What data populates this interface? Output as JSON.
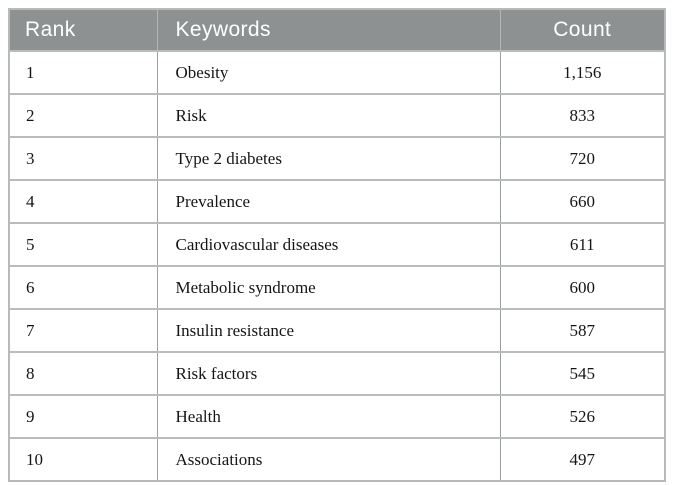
{
  "table": {
    "name": "top-keywords-table",
    "columns": [
      {
        "key": "rank",
        "label": "Rank"
      },
      {
        "key": "keyword",
        "label": "Keywords"
      },
      {
        "key": "count",
        "label": "Count"
      }
    ],
    "rows": [
      {
        "rank": "1",
        "keyword": "Obesity",
        "count": "1,156"
      },
      {
        "rank": "2",
        "keyword": "Risk",
        "count": "833"
      },
      {
        "rank": "3",
        "keyword": "Type 2 diabetes",
        "count": "720"
      },
      {
        "rank": "4",
        "keyword": "Prevalence",
        "count": "660"
      },
      {
        "rank": "5",
        "keyword": "Cardiovascular diseases",
        "count": "611"
      },
      {
        "rank": "6",
        "keyword": "Metabolic syndrome",
        "count": "600"
      },
      {
        "rank": "7",
        "keyword": "Insulin resistance",
        "count": "587"
      },
      {
        "rank": "8",
        "keyword": "Risk factors",
        "count": "545"
      },
      {
        "rank": "9",
        "keyword": "Health",
        "count": "526"
      },
      {
        "rank": "10",
        "keyword": "Associations",
        "count": "497"
      }
    ]
  },
  "colors": {
    "header_bg": "#8e9192",
    "header_text": "#ffffff",
    "outer_border": "#b6bbb9",
    "row_divider": "#b8bdbb",
    "column_divider": "#9aa09e",
    "header_divider": "#b2b7b5",
    "body_text": "#151515",
    "row_bg": "#ffffff"
  }
}
